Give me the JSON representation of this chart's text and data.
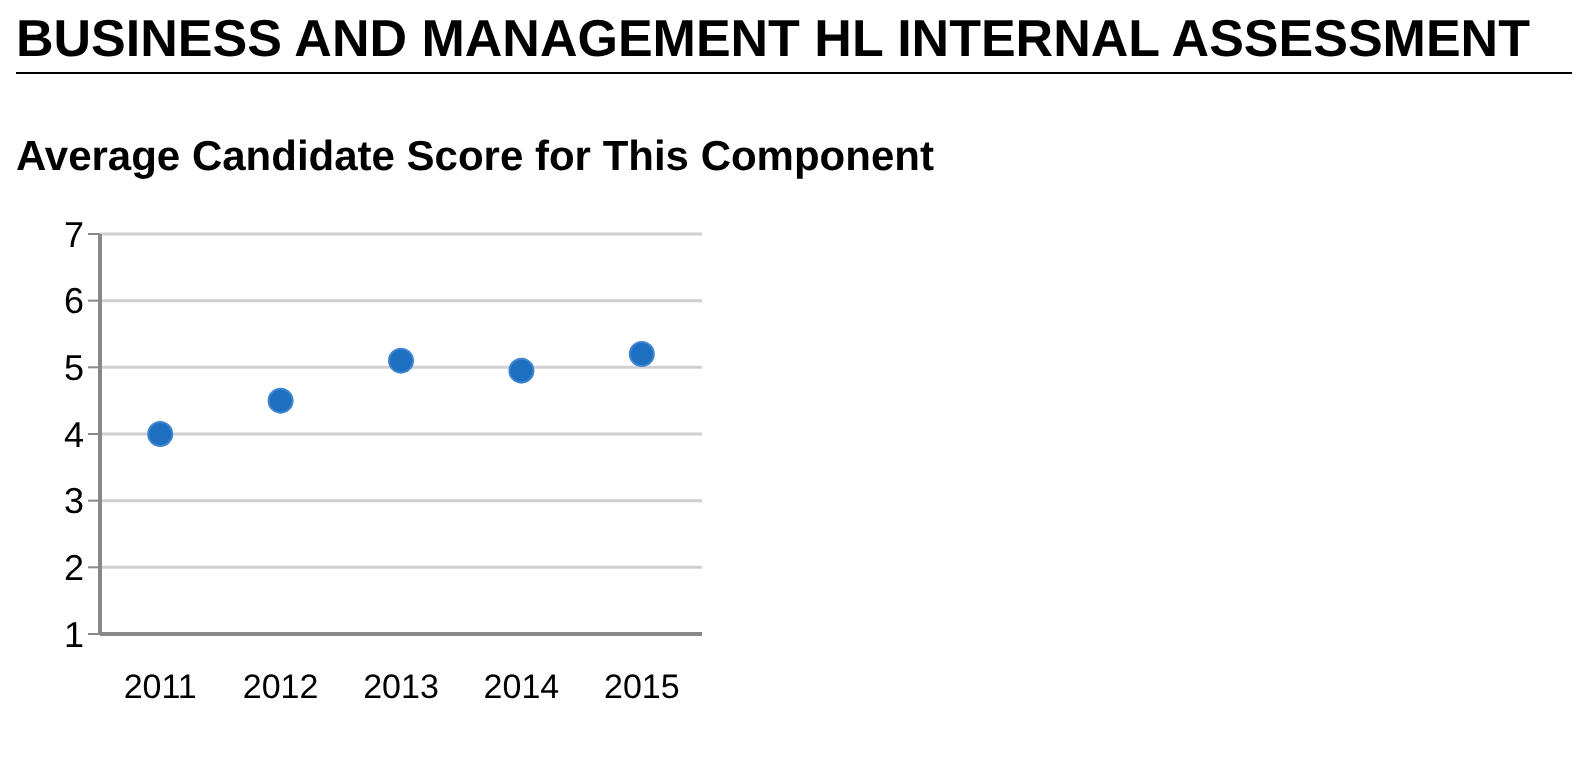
{
  "chart_data": {
    "type": "scatter",
    "title": "BUSINESS AND MANAGEMENT HL INTERNAL ASSESSMENT",
    "subtitle": "Average Candidate Score for This Component",
    "categories": [
      "2011",
      "2012",
      "2013",
      "2014",
      "2015"
    ],
    "series": [
      {
        "color": "#1f6fc0",
        "values": [
          4.0,
          4.5,
          5.1,
          4.95,
          5.2
        ]
      }
    ],
    "ylim": [
      1,
      7
    ],
    "yticks": [
      1,
      2,
      3,
      4,
      5,
      6,
      7
    ],
    "grid": "y",
    "marker": "circle",
    "legend": false
  }
}
